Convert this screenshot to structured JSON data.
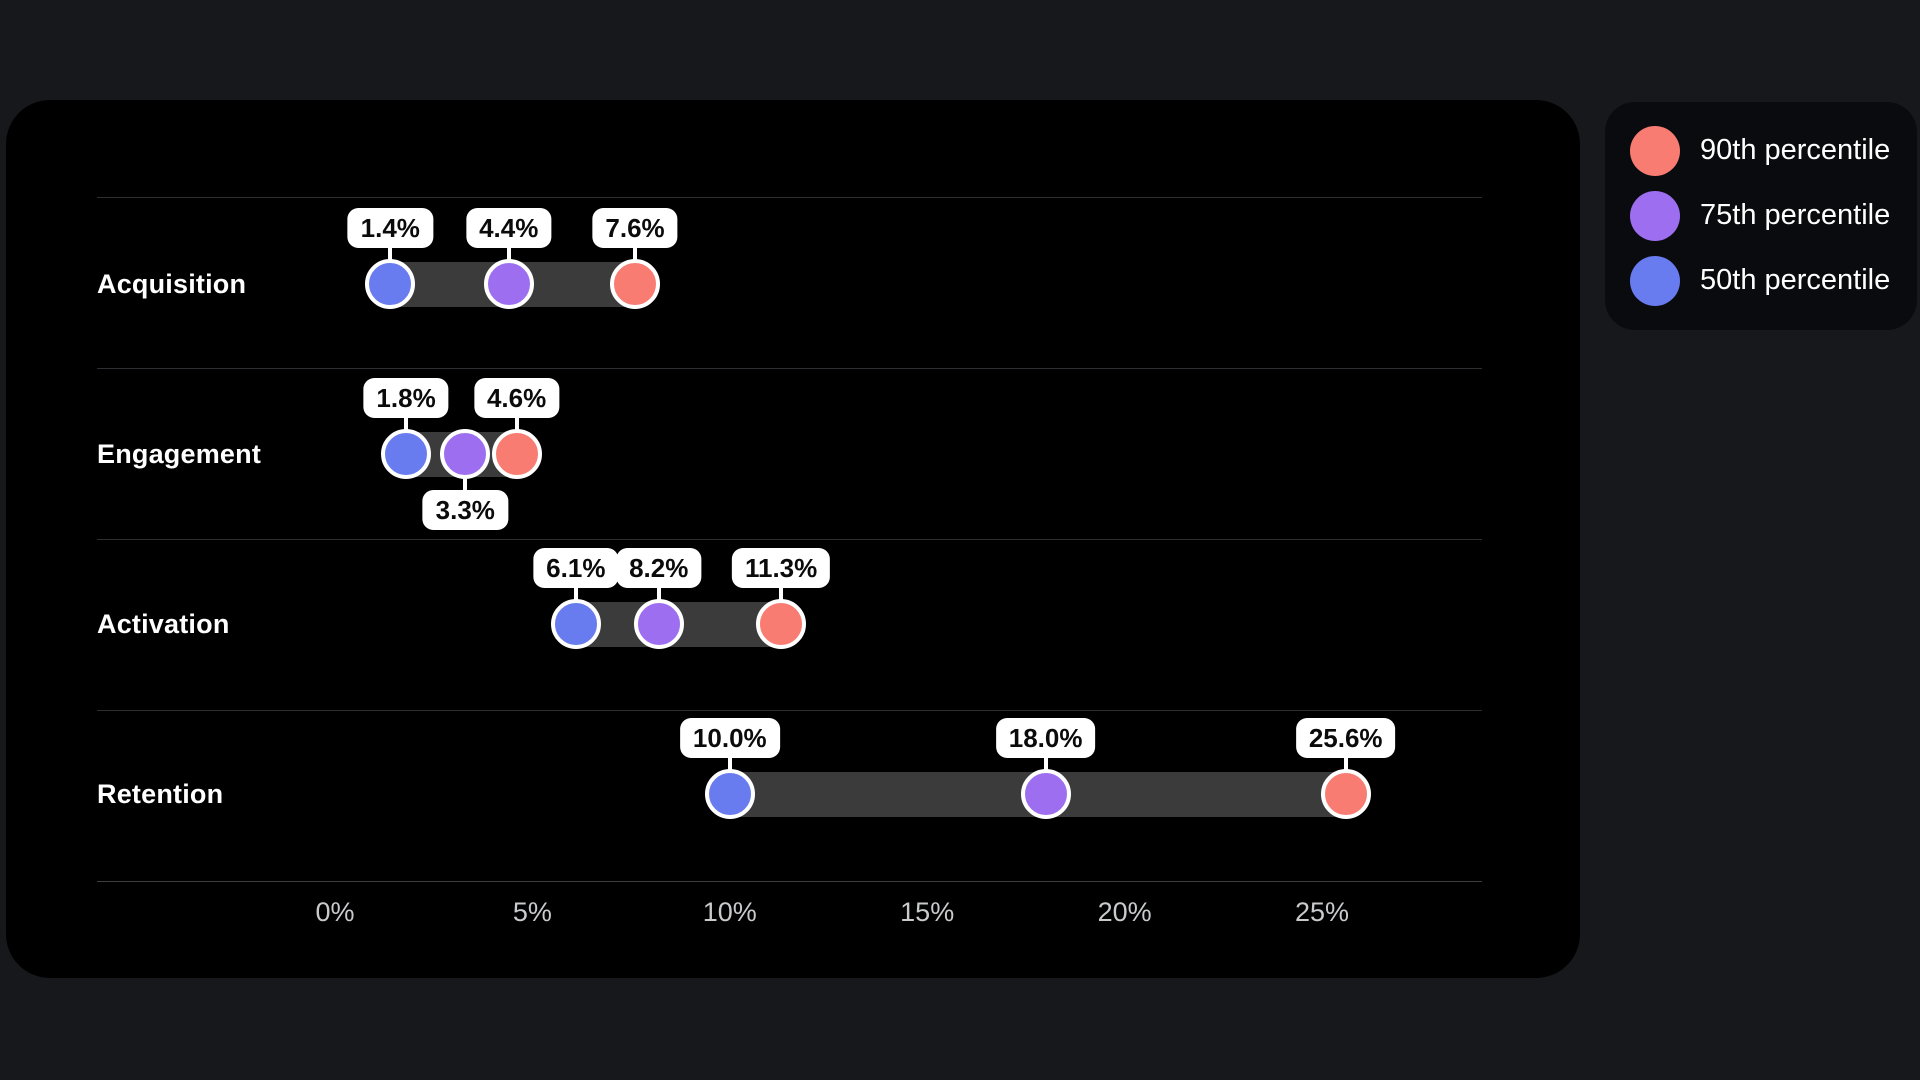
{
  "colors": {
    "page_bg": "#16181c",
    "card_bg": "#000000",
    "legend_bg": "#0a0b0e",
    "range_bar": "#3b3b3b",
    "separator": "#2d2f33",
    "axis_line": "#3c3e42",
    "axis_text": "#c9cacc",
    "pill_bg": "#ffffff",
    "pill_text": "#0b0b0c",
    "category_text": "#ffffff",
    "dot_ring": "#ffffff",
    "p50": "#687bef",
    "p75": "#9e6ef0",
    "p90": "#f87c72"
  },
  "chart_data": {
    "type": "dumbbell-dot-plot",
    "title": "",
    "description": "Horizontal percentile range chart: 50th, 75th and 90th percentile dots per funnel stage, connected by a dark range bar, values labeled in white pills.",
    "x_axis": {
      "tick_labels": [
        "0%",
        "5%",
        "10%",
        "15%",
        "20%",
        "25%"
      ],
      "tick_values": [
        0,
        5,
        10,
        15,
        20,
        25
      ],
      "xlim": [
        -6,
        29
      ],
      "grid": false
    },
    "percentiles": [
      {
        "id": "p50",
        "name": "50th percentile",
        "color": "#687bef"
      },
      {
        "id": "p75",
        "name": "75th percentile",
        "color": "#9e6ef0"
      },
      {
        "id": "p90",
        "name": "90th percentile",
        "color": "#f87c72"
      }
    ],
    "rows": [
      {
        "category": "Acquisition",
        "points": [
          {
            "percentile": "p50",
            "value": 1.4,
            "label": "1.4%",
            "label_side": "above"
          },
          {
            "percentile": "p75",
            "value": 4.4,
            "label": "4.4%",
            "label_side": "above"
          },
          {
            "percentile": "p90",
            "value": 7.6,
            "label": "7.6%",
            "label_side": "above"
          }
        ]
      },
      {
        "category": "Engagement",
        "points": [
          {
            "percentile": "p50",
            "value": 1.8,
            "label": "1.8%",
            "label_side": "above"
          },
          {
            "percentile": "p75",
            "value": 3.3,
            "label": "3.3%",
            "label_side": "below"
          },
          {
            "percentile": "p90",
            "value": 4.6,
            "label": "4.6%",
            "label_side": "above"
          }
        ]
      },
      {
        "category": "Activation",
        "points": [
          {
            "percentile": "p50",
            "value": 6.1,
            "label": "6.1%",
            "label_side": "above"
          },
          {
            "percentile": "p75",
            "value": 8.2,
            "label": "8.2%",
            "label_side": "above"
          },
          {
            "percentile": "p90",
            "value": 11.3,
            "label": "11.3%",
            "label_side": "above"
          }
        ]
      },
      {
        "category": "Retention",
        "points": [
          {
            "percentile": "p50",
            "value": 10.0,
            "label": "10.0%",
            "label_side": "above"
          },
          {
            "percentile": "p75",
            "value": 18.0,
            "label": "18.0%",
            "label_side": "above"
          },
          {
            "percentile": "p90",
            "value": 25.6,
            "label": "25.6%",
            "label_side": "above"
          }
        ]
      }
    ]
  },
  "legend": {
    "items": [
      {
        "label": "90th percentile",
        "color": "#f87c72"
      },
      {
        "label": "75th percentile",
        "color": "#9e6ef0"
      },
      {
        "label": "50th percentile",
        "color": "#687bef"
      }
    ]
  }
}
